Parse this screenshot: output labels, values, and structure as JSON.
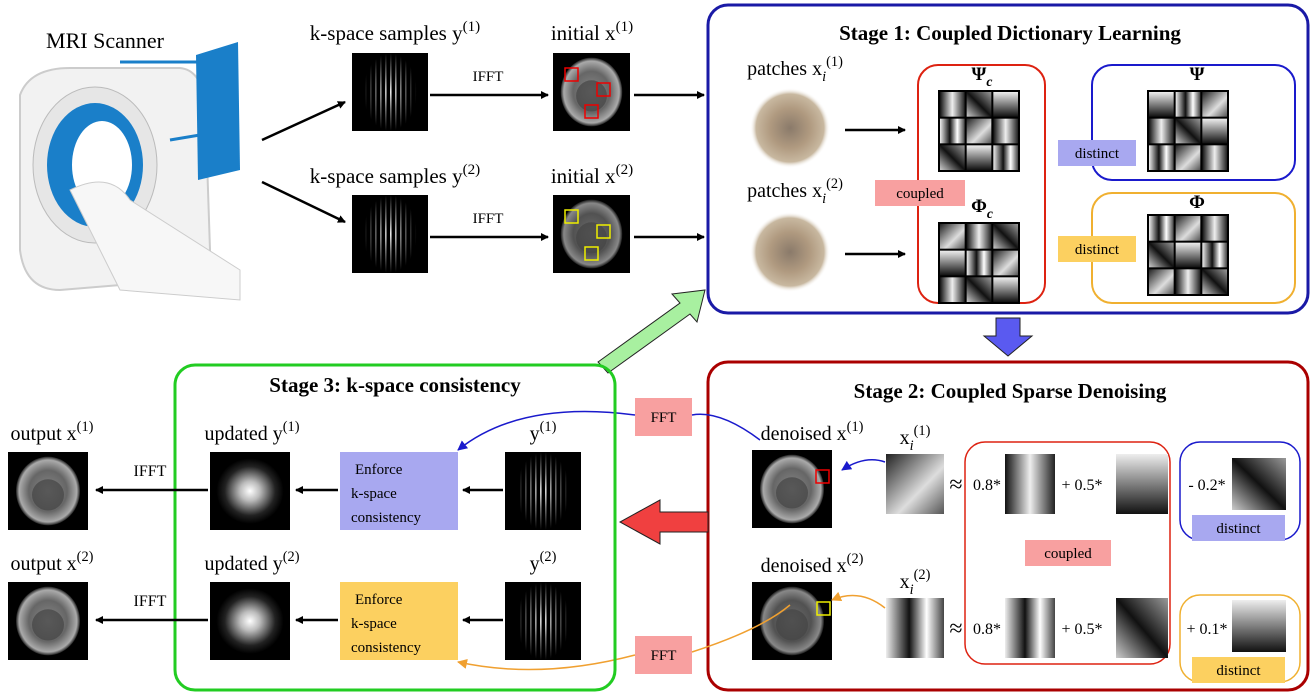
{
  "scanner": {
    "label": "MRI Scanner"
  },
  "acquisition": [
    {
      "kspace": {
        "text": "k-space samples y",
        "sup": "(1)"
      },
      "ifft": "IFFT",
      "initial": {
        "text": "initial x",
        "sup": "(1)"
      }
    },
    {
      "kspace": {
        "text": "k-space samples y",
        "sup": "(2)"
      },
      "ifft": "IFFT",
      "initial": {
        "text": "initial x",
        "sup": "(2)"
      }
    }
  ],
  "stage1": {
    "title": "Stage 1: Coupled Dictionary Learning",
    "patches": [
      {
        "text": "patches x",
        "sub": "i",
        "sup": "(1)"
      },
      {
        "text": "patches x",
        "sub": "i",
        "sup": "(2)"
      }
    ],
    "coupled": "coupled",
    "coupled_dictionaries": [
      {
        "symbol": "Ψ",
        "sub": "c"
      },
      {
        "symbol": "Φ",
        "sub": "c"
      }
    ],
    "distinct_dictionaries": [
      {
        "symbol": "Ψ",
        "tag": "distinct"
      },
      {
        "symbol": "Φ",
        "tag": "distinct"
      }
    ]
  },
  "stage2": {
    "title": "Stage 2: Coupled Sparse Denoising",
    "rows": [
      {
        "denoised": {
          "text": "denoised x",
          "sup": "(1)"
        },
        "patch": {
          "text": "x",
          "sub": "i",
          "sup": "(1)"
        },
        "approx": "≈",
        "coef1": "0.8*",
        "coef2": "+ 0.5*",
        "coef3": "- 0.2*",
        "tag": "distinct"
      },
      {
        "denoised": {
          "text": "denoised x",
          "sup": "(2)"
        },
        "patch": {
          "text": "x",
          "sub": "i",
          "sup": "(2)"
        },
        "approx": "≈",
        "coef1": "0.8*",
        "coef2": "+ 0.5*",
        "coef3": "+ 0.1*",
        "tag": "distinct"
      }
    ],
    "coupled": "coupled"
  },
  "fft": [
    "FFT",
    "FFT"
  ],
  "stage3": {
    "title": "Stage 3: k-space consistency",
    "rows": [
      {
        "y": {
          "text": "y",
          "sup": "(1)"
        },
        "enforce": [
          "Enforce",
          "k-space",
          "consistency"
        ],
        "updated": {
          "text": "updated y",
          "sup": "(1)"
        },
        "ifft": "IFFT",
        "output": {
          "text": "output x",
          "sup": "(1)"
        }
      },
      {
        "y": {
          "text": "y",
          "sup": "(2)"
        },
        "enforce": [
          "Enforce",
          "k-space",
          "consistency"
        ],
        "updated": {
          "text": "updated y",
          "sup": "(2)"
        },
        "ifft": "IFFT",
        "output": {
          "text": "output x",
          "sup": "(2)"
        }
      }
    ]
  }
}
